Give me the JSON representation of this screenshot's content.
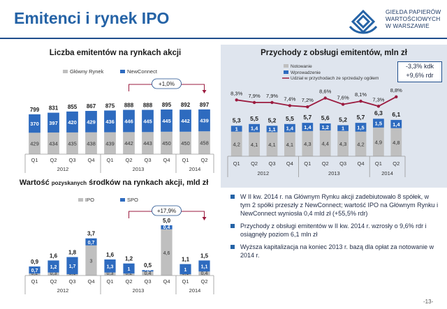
{
  "header": {
    "title": "Emitenci i rynek IPO",
    "logo_lines": [
      "GIEŁDA PAPIERÓW",
      "WARTOŚCIOWYCH",
      "W WARSZAWIE"
    ]
  },
  "page_number": "-13-",
  "chart_data": [
    {
      "type": "bar",
      "title": "Liczba emitentów na rynkach akcji",
      "categories": [
        "Q1",
        "Q2",
        "Q3",
        "Q4",
        "Q1",
        "Q2",
        "Q3",
        "Q4",
        "Q1",
        "Q2"
      ],
      "groups": [
        {
          "label": "2012",
          "from": 0,
          "to": 3
        },
        {
          "label": "2013",
          "from": 4,
          "to": 7
        },
        {
          "label": "2014",
          "from": 8,
          "to": 9
        }
      ],
      "series": [
        {
          "name": "Główny Rynek",
          "color": "#bfbfbf",
          "values": [
            429,
            434,
            435,
            438,
            439,
            442,
            443,
            450,
            450,
            458
          ]
        },
        {
          "name": "NewConnect",
          "color": "#2e6bbf",
          "values": [
            370,
            397,
            420,
            429,
            436,
            446,
            445,
            445,
            442,
            439
          ]
        }
      ],
      "totals": [
        799,
        831,
        855,
        867,
        875,
        888,
        888,
        895,
        892,
        897
      ],
      "annotation": "+1,0%",
      "legend": "top"
    },
    {
      "type": "bar",
      "title": "Przychody z obsługi emitentów, mln zł",
      "categories": [
        "Q1",
        "Q2",
        "Q3",
        "Q4",
        "Q1",
        "Q2",
        "Q3",
        "Q4",
        "Q1",
        "Q2"
      ],
      "groups": [
        {
          "label": "2012",
          "from": 0,
          "to": 3
        },
        {
          "label": "2013",
          "from": 4,
          "to": 7
        },
        {
          "label": "2014",
          "from": 8,
          "to": 9
        }
      ],
      "series": [
        {
          "name": "Notowanie",
          "color": "#bfbfbf",
          "values": [
            4.2,
            4.1,
            4.1,
            4.1,
            4.3,
            4.4,
            4.3,
            4.2,
            4.9,
            4.8
          ]
        },
        {
          "name": "Wprowadzenie",
          "color": "#2e6bbf",
          "values": [
            1.0,
            1.4,
            1.1,
            1.4,
            1.4,
            1.2,
            1.0,
            1.5,
            1.5,
            1.4
          ]
        },
        {
          "name": "Udział w przychodach ze sprzedaży ogółem",
          "color": "#9b1b3f",
          "type": "line",
          "values": [
            8.3,
            7.9,
            7.9,
            7.4,
            7.2,
            8.6,
            7.6,
            8.1,
            7.3,
            8.8
          ],
          "labels": [
            "8,3%",
            "7,9%",
            "7,9%",
            "7,4%",
            "7,2%",
            "8,6%",
            "7,6%",
            "8,1%",
            "7,3%",
            "8,8%"
          ]
        }
      ],
      "totals": [
        5.3,
        5.5,
        5.2,
        5.5,
        5.7,
        5.6,
        5.2,
        5.7,
        6.3,
        6.1
      ],
      "annotation_lines": [
        "-3,3% kdk",
        "+9,6% rdr"
      ],
      "legend": "top-left"
    },
    {
      "type": "bar",
      "title": "Wartość pozyskanych środków na rynkach akcji, mld zł",
      "title_parts": [
        "Wartość ",
        "pozyskanych",
        " środków na rynkach akcji, mld zł"
      ],
      "categories": [
        "Q1",
        "Q2",
        "Q3",
        "Q4",
        "Q1",
        "Q2",
        "Q3",
        "Q4",
        "Q1",
        "Q2"
      ],
      "groups": [
        {
          "label": "2012",
          "from": 0,
          "to": 3
        },
        {
          "label": "2013",
          "from": 4,
          "to": 7
        },
        {
          "label": "2014",
          "from": 8,
          "to": 9
        }
      ],
      "series": [
        {
          "name": "IPO",
          "color": "#bfbfbf",
          "values": [
            0.2,
            0.3,
            0.1,
            3.0,
            0.3,
            0.2,
            0.4,
            4.6,
            0.1,
            0.4
          ]
        },
        {
          "name": "SPO",
          "color": "#2e6bbf",
          "values": [
            0.7,
            1.2,
            1.7,
            0.7,
            1.3,
            1.0,
            0.1,
            0.4,
            1.0,
            1.1
          ]
        }
      ],
      "totals": [
        0.9,
        1.6,
        1.8,
        3.7,
        1.6,
        1.2,
        0.5,
        5.0,
        1.1,
        1.5
      ],
      "total_labels": [
        "0,9",
        "1,6",
        "1,8",
        "3,7",
        "1,6",
        "1,2",
        "0,5",
        "5,0",
        "1,1",
        "1,5"
      ],
      "annotation": "+17,9%",
      "legend": "top"
    }
  ],
  "bullets": [
    "W II kw. 2014 r. na Głównym Rynku akcji zadebiutowało 8 spółek, w tym 2 spółki przeszły z NewConnect; wartość IPO na Głównym Rynku i NewConnect wyniosła 0,4 mld zł (+55,5% rdr)",
    "Przychody z obsługi emitentów w II kw. 2014 r. wzrosły o 9,6% rdr i osiągnęły poziom 6,1 mln zł",
    "Wyższa kapitalizacja na koniec 2013 r. bazą dla opłat za notowanie w 2014 r."
  ]
}
